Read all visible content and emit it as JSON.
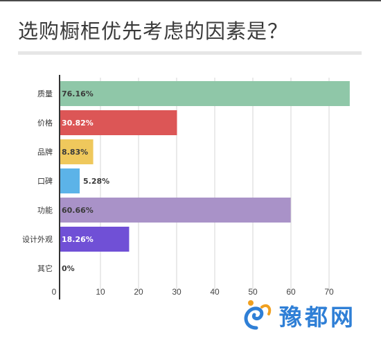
{
  "title": "选购橱柜优先考虑的因素是？",
  "chart_data": {
    "type": "bar",
    "orientation": "horizontal",
    "title": "选购橱柜优先考虑的因素是？",
    "xlabel": "",
    "ylabel": "",
    "xlim": [
      0,
      77
    ],
    "xticks": [
      0,
      10,
      20,
      30,
      40,
      50,
      60,
      70
    ],
    "grid": true,
    "categories": [
      "质量",
      "价格",
      "品牌",
      "口碑",
      "功能",
      "设计外观",
      "其它"
    ],
    "values": [
      76.16,
      30.82,
      8.83,
      5.28,
      60.66,
      18.26,
      0
    ],
    "value_labels": [
      "76.16%",
      "30.82%",
      "8.83%",
      "5.28%",
      "60.66%",
      "18.26%",
      "0%"
    ],
    "colors": [
      "#8fc7a8",
      "#dc5656",
      "#efc85c",
      "#5cb3e8",
      "#a992c8",
      "#7050d6",
      "#cccccc"
    ],
    "label_colors": [
      "#3a3a3a",
      "#ffffff",
      "#3a3a3a",
      "#3a3a3a",
      "#3a3a3a",
      "#ffffff",
      "#3a3a3a"
    ]
  },
  "watermark": {
    "text": "豫都网",
    "color": "#2f7fd6"
  }
}
